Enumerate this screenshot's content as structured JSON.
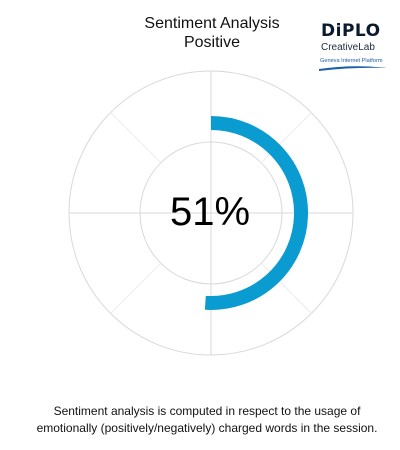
{
  "chart_data": {
    "type": "donut",
    "title": "Sentiment Analysis",
    "subtitle": "Positive",
    "value_percent": 51,
    "value_label": "51%",
    "range": [
      0,
      100
    ],
    "grid": true,
    "legend": "none"
  },
  "logo": {
    "name": "DiPLO",
    "sub": "CreativeLab",
    "tag": "Geneva Internet Platform"
  },
  "footnote": "Sentiment analysis is computed in respect to the usage of emotionally (positively/negatively) charged words in the session.",
  "colors": {
    "arc": "#0a9bd0",
    "grid": "#d9d9d9",
    "text": "#111111",
    "logo_dark": "#0b1a2e",
    "logo_blue": "#1d5fa8"
  }
}
